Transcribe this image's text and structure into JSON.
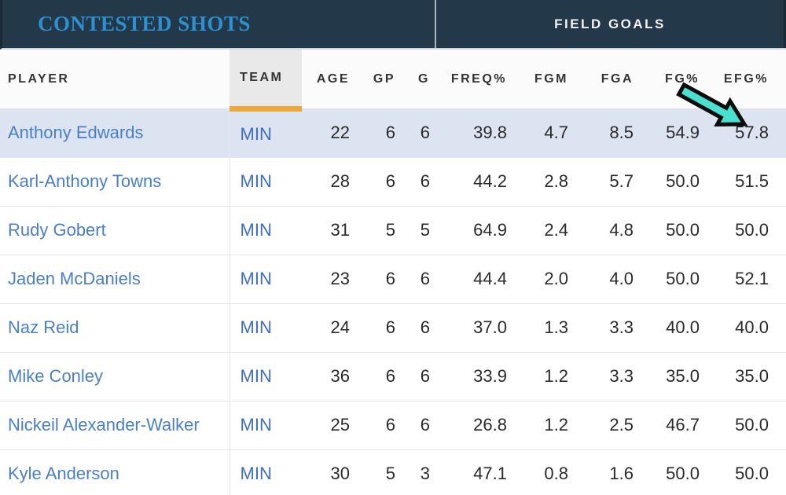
{
  "banner": {
    "left_title": "CONTESTED SHOTS",
    "right_title": "FIELD GOALS",
    "bg_color": "#233849",
    "left_title_color": "#2b91d2"
  },
  "table": {
    "columns": [
      {
        "key": "player",
        "label": "PLAYER"
      },
      {
        "key": "team",
        "label": "TEAM",
        "highlighted": true
      },
      {
        "key": "age",
        "label": "AGE"
      },
      {
        "key": "gp",
        "label": "GP"
      },
      {
        "key": "g",
        "label": "G"
      },
      {
        "key": "freq",
        "label": "FREQ%"
      },
      {
        "key": "fgm",
        "label": "FGM"
      },
      {
        "key": "fga",
        "label": "FGA"
      },
      {
        "key": "fg",
        "label": "FG%"
      },
      {
        "key": "efg",
        "label": "EFG%"
      }
    ],
    "rows": [
      {
        "player": "Anthony Edwards",
        "team": "MIN",
        "age": "22",
        "gp": "6",
        "g": "6",
        "freq": "39.8",
        "fgm": "4.7",
        "fga": "8.5",
        "fg": "54.9",
        "efg": "57.8",
        "highlighted": true
      },
      {
        "player": "Karl-Anthony Towns",
        "team": "MIN",
        "age": "28",
        "gp": "6",
        "g": "6",
        "freq": "44.2",
        "fgm": "2.8",
        "fga": "5.7",
        "fg": "50.0",
        "efg": "51.5"
      },
      {
        "player": "Rudy Gobert",
        "team": "MIN",
        "age": "31",
        "gp": "5",
        "g": "5",
        "freq": "64.9",
        "fgm": "2.4",
        "fga": "4.8",
        "fg": "50.0",
        "efg": "50.0"
      },
      {
        "player": "Jaden McDaniels",
        "team": "MIN",
        "age": "23",
        "gp": "6",
        "g": "6",
        "freq": "44.4",
        "fgm": "2.0",
        "fga": "4.0",
        "fg": "50.0",
        "efg": "52.1"
      },
      {
        "player": "Naz Reid",
        "team": "MIN",
        "age": "24",
        "gp": "6",
        "g": "6",
        "freq": "37.0",
        "fgm": "1.3",
        "fga": "3.3",
        "fg": "40.0",
        "efg": "40.0"
      },
      {
        "player": "Mike Conley",
        "team": "MIN",
        "age": "36",
        "gp": "6",
        "g": "6",
        "freq": "33.9",
        "fgm": "1.2",
        "fga": "3.3",
        "fg": "35.0",
        "efg": "35.0"
      },
      {
        "player": "Nickeil Alexander-Walker",
        "team": "MIN",
        "age": "25",
        "gp": "6",
        "g": "6",
        "freq": "26.8",
        "fgm": "1.2",
        "fga": "2.5",
        "fg": "46.7",
        "efg": "50.0"
      },
      {
        "player": "Kyle Anderson",
        "team": "MIN",
        "age": "30",
        "gp": "5",
        "g": "3",
        "freq": "47.1",
        "fgm": "0.8",
        "fga": "1.6",
        "fg": "50.0",
        "efg": "50.0"
      }
    ]
  },
  "annotation": {
    "arrow_name": "highlight-arrow-icon",
    "arrow_color": "#4ae0cf",
    "arrow_outline": "#0c0c0c",
    "points_at_value": "57.8"
  },
  "accents": {
    "sort_underline_color": "#eba93b",
    "highlighted_row_color": "#dde4f1",
    "team_header_bg": "#e9e9e9"
  }
}
